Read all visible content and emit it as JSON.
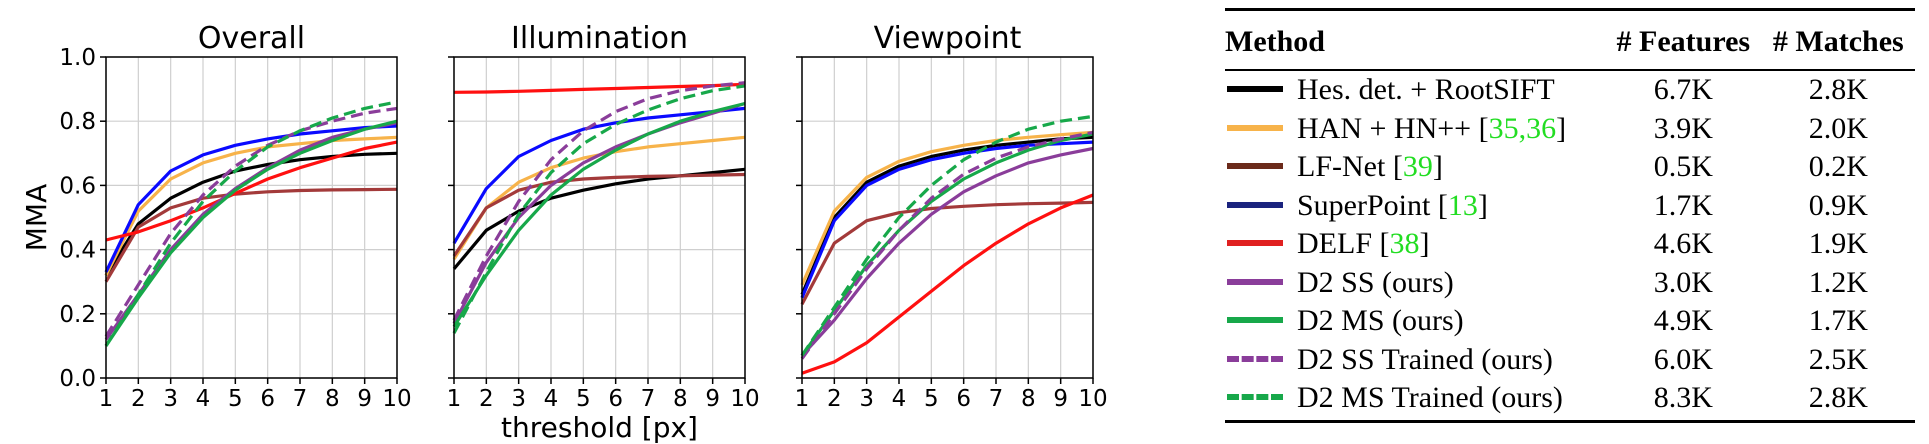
{
  "chart_data": [
    {
      "type": "line",
      "title": "Overall",
      "xlabel": "",
      "ylabel": "MMA",
      "xlim": [
        1,
        10
      ],
      "ylim": [
        0,
        1
      ],
      "x": [
        1,
        2,
        3,
        4,
        5,
        6,
        7,
        8,
        9,
        10
      ],
      "x_ticks": [
        "1",
        "2",
        "3",
        "4",
        "5",
        "6",
        "7",
        "8",
        "9",
        "10"
      ],
      "y_ticks": [
        "0.0",
        "0.2",
        "0.4",
        "0.6",
        "0.8",
        "1.0"
      ],
      "grid": true,
      "series": [
        {
          "name": "Hes. det. + RootSIFT",
          "color": "#000000",
          "dash": "solid",
          "values": [
            0.32,
            0.48,
            0.56,
            0.61,
            0.645,
            0.665,
            0.68,
            0.69,
            0.697,
            0.7
          ]
        },
        {
          "name": "HAN + HN++ [35,36]",
          "color": "#f7b34a",
          "dash": "solid",
          "values": [
            0.32,
            0.52,
            0.62,
            0.67,
            0.7,
            0.72,
            0.73,
            0.74,
            0.745,
            0.75
          ]
        },
        {
          "name": "LF-Net [39]",
          "color": "#a33a3a",
          "dash": "solid",
          "values": [
            0.3,
            0.47,
            0.53,
            0.56,
            0.573,
            0.58,
            0.584,
            0.586,
            0.587,
            0.588
          ]
        },
        {
          "name": "SuperPoint [13]",
          "color": "#0a0aff",
          "dash": "solid",
          "values": [
            0.33,
            0.54,
            0.645,
            0.695,
            0.725,
            0.745,
            0.76,
            0.77,
            0.78,
            0.785
          ]
        },
        {
          "name": "DELF [38]",
          "color": "#ff1010",
          "dash": "solid",
          "values": [
            0.43,
            0.455,
            0.49,
            0.53,
            0.575,
            0.62,
            0.655,
            0.685,
            0.715,
            0.735
          ]
        },
        {
          "name": "D2 SS (ours)",
          "color": "#8a3d9a",
          "dash": "solid",
          "values": [
            0.12,
            0.26,
            0.4,
            0.51,
            0.59,
            0.655,
            0.71,
            0.75,
            0.775,
            0.795
          ]
        },
        {
          "name": "D2 MS (ours)",
          "color": "#17a84a",
          "dash": "solid",
          "values": [
            0.1,
            0.25,
            0.39,
            0.5,
            0.585,
            0.65,
            0.7,
            0.74,
            0.775,
            0.8
          ]
        },
        {
          "name": "D2 SS Trained (ours)",
          "color": "#8a3d9a",
          "dash": "dashed",
          "values": [
            0.13,
            0.29,
            0.45,
            0.57,
            0.66,
            0.725,
            0.77,
            0.8,
            0.825,
            0.84
          ]
        },
        {
          "name": "D2 MS Trained (ours)",
          "color": "#17a84a",
          "dash": "dashed",
          "values": [
            0.1,
            0.26,
            0.42,
            0.55,
            0.645,
            0.72,
            0.77,
            0.81,
            0.84,
            0.86
          ]
        }
      ]
    },
    {
      "type": "line",
      "title": "Illumination",
      "xlabel": "",
      "ylabel": "",
      "xlim": [
        1,
        10
      ],
      "ylim": [
        0,
        1
      ],
      "x": [
        1,
        2,
        3,
        4,
        5,
        6,
        7,
        8,
        9,
        10
      ],
      "x_ticks": [
        "1",
        "2",
        "3",
        "4",
        "5",
        "6",
        "7",
        "8",
        "9",
        "10"
      ],
      "y_ticks": [],
      "grid": true,
      "series": [
        {
          "name": "Hes. det. + RootSIFT",
          "color": "#000000",
          "dash": "solid",
          "values": [
            0.34,
            0.46,
            0.52,
            0.56,
            0.585,
            0.605,
            0.62,
            0.63,
            0.64,
            0.65
          ]
        },
        {
          "name": "HAN + HN++ [35,36]",
          "color": "#f7b34a",
          "dash": "solid",
          "values": [
            0.37,
            0.53,
            0.61,
            0.655,
            0.685,
            0.705,
            0.72,
            0.73,
            0.74,
            0.75
          ]
        },
        {
          "name": "LF-Net [39]",
          "color": "#a33a3a",
          "dash": "solid",
          "values": [
            0.38,
            0.53,
            0.585,
            0.61,
            0.62,
            0.625,
            0.628,
            0.63,
            0.632,
            0.634
          ]
        },
        {
          "name": "SuperPoint [13]",
          "color": "#0a0aff",
          "dash": "solid",
          "values": [
            0.42,
            0.59,
            0.69,
            0.74,
            0.775,
            0.795,
            0.81,
            0.82,
            0.83,
            0.84
          ]
        },
        {
          "name": "DELF [38]",
          "color": "#ff1010",
          "dash": "solid",
          "values": [
            0.89,
            0.891,
            0.893,
            0.896,
            0.899,
            0.902,
            0.905,
            0.908,
            0.911,
            0.915
          ]
        },
        {
          "name": "D2 SS (ours)",
          "color": "#8a3d9a",
          "dash": "solid",
          "values": [
            0.17,
            0.36,
            0.5,
            0.6,
            0.67,
            0.72,
            0.76,
            0.795,
            0.825,
            0.855
          ]
        },
        {
          "name": "D2 MS (ours)",
          "color": "#17a84a",
          "dash": "solid",
          "values": [
            0.16,
            0.32,
            0.46,
            0.57,
            0.65,
            0.71,
            0.76,
            0.8,
            0.83,
            0.855
          ]
        },
        {
          "name": "D2 SS Trained (ours)",
          "color": "#8a3d9a",
          "dash": "dashed",
          "values": [
            0.18,
            0.38,
            0.55,
            0.68,
            0.77,
            0.83,
            0.87,
            0.895,
            0.91,
            0.92
          ]
        },
        {
          "name": "D2 MS Trained (ours)",
          "color": "#17a84a",
          "dash": "dashed",
          "values": [
            0.14,
            0.33,
            0.51,
            0.64,
            0.73,
            0.79,
            0.835,
            0.87,
            0.895,
            0.91
          ]
        }
      ]
    },
    {
      "type": "line",
      "title": "Viewpoint",
      "xlabel": "threshold [px]",
      "ylabel": "",
      "xlim": [
        1,
        10
      ],
      "ylim": [
        0,
        1
      ],
      "x": [
        1,
        2,
        3,
        4,
        5,
        6,
        7,
        8,
        9,
        10
      ],
      "x_ticks": [
        "1",
        "2",
        "3",
        "4",
        "5",
        "6",
        "7",
        "8",
        "9",
        "10"
      ],
      "y_ticks": [],
      "grid": true,
      "series": [
        {
          "name": "Hes. det. + RootSIFT",
          "color": "#000000",
          "dash": "solid",
          "values": [
            0.26,
            0.5,
            0.61,
            0.66,
            0.69,
            0.71,
            0.725,
            0.735,
            0.745,
            0.75
          ]
        },
        {
          "name": "HAN + HN++ [35,36]",
          "color": "#f7b34a",
          "dash": "solid",
          "values": [
            0.29,
            0.52,
            0.625,
            0.675,
            0.705,
            0.725,
            0.74,
            0.75,
            0.758,
            0.765
          ]
        },
        {
          "name": "LF-Net [39]",
          "color": "#a33a3a",
          "dash": "solid",
          "values": [
            0.23,
            0.42,
            0.49,
            0.515,
            0.528,
            0.535,
            0.54,
            0.543,
            0.545,
            0.547
          ]
        },
        {
          "name": "SuperPoint [13]",
          "color": "#0a0aff",
          "dash": "solid",
          "values": [
            0.25,
            0.49,
            0.6,
            0.65,
            0.68,
            0.7,
            0.715,
            0.725,
            0.73,
            0.735
          ]
        },
        {
          "name": "DELF [38]",
          "color": "#ff1010",
          "dash": "solid",
          "values": [
            0.015,
            0.05,
            0.11,
            0.19,
            0.27,
            0.35,
            0.42,
            0.48,
            0.53,
            0.57
          ]
        },
        {
          "name": "D2 SS (ours)",
          "color": "#8a3d9a",
          "dash": "solid",
          "values": [
            0.07,
            0.18,
            0.31,
            0.42,
            0.51,
            0.58,
            0.63,
            0.67,
            0.695,
            0.715
          ]
        },
        {
          "name": "D2 MS (ours)",
          "color": "#17a84a",
          "dash": "solid",
          "values": [
            0.07,
            0.21,
            0.35,
            0.46,
            0.55,
            0.62,
            0.67,
            0.71,
            0.74,
            0.76
          ]
        },
        {
          "name": "D2 SS Trained (ours)",
          "color": "#8a3d9a",
          "dash": "dashed",
          "values": [
            0.06,
            0.2,
            0.34,
            0.46,
            0.56,
            0.635,
            0.685,
            0.72,
            0.745,
            0.765
          ]
        },
        {
          "name": "D2 MS Trained (ours)",
          "color": "#17a84a",
          "dash": "dashed",
          "values": [
            0.07,
            0.22,
            0.37,
            0.5,
            0.6,
            0.68,
            0.735,
            0.775,
            0.8,
            0.815
          ]
        }
      ]
    }
  ],
  "table": {
    "headers": [
      "Method",
      "# Features",
      "# Matches"
    ],
    "rows": [
      {
        "method": "Hes. det. + RootSIFT",
        "ref": "",
        "suffix": "",
        "features": "6.7K",
        "matches": "2.8K",
        "color": "#000000",
        "dash": "solid"
      },
      {
        "method": "HAN + HN++ [",
        "ref": "35,36",
        "suffix": "]",
        "features": "3.9K",
        "matches": "2.0K",
        "color": "#f7b34a",
        "dash": "solid"
      },
      {
        "method": "LF-Net [",
        "ref": "39",
        "suffix": "]",
        "features": "0.5K",
        "matches": "0.2K",
        "color": "#6b2a1a",
        "dash": "solid"
      },
      {
        "method": "SuperPoint [",
        "ref": "13",
        "suffix": "]",
        "features": "1.7K",
        "matches": "0.9K",
        "color": "#1a237e",
        "dash": "solid"
      },
      {
        "method": "DELF [",
        "ref": "38",
        "suffix": "]",
        "features": "4.6K",
        "matches": "1.9K",
        "color": "#e02020",
        "dash": "solid"
      },
      {
        "method": "D2 SS (ours)",
        "ref": "",
        "suffix": "",
        "features": "3.0K",
        "matches": "1.2K",
        "color": "#8a3d9a",
        "dash": "solid"
      },
      {
        "method": "D2 MS (ours)",
        "ref": "",
        "suffix": "",
        "features": "4.9K",
        "matches": "1.7K",
        "color": "#17a84a",
        "dash": "solid"
      },
      {
        "method": "D2 SS Trained (ours)",
        "ref": "",
        "suffix": "",
        "features": "6.0K",
        "matches": "2.5K",
        "color": "#8a3d9a",
        "dash": "dashed"
      },
      {
        "method": "D2 MS Trained (ours)",
        "ref": "",
        "suffix": "",
        "features": "8.3K",
        "matches": "2.8K",
        "color": "#17a84a",
        "dash": "dashed"
      }
    ]
  }
}
